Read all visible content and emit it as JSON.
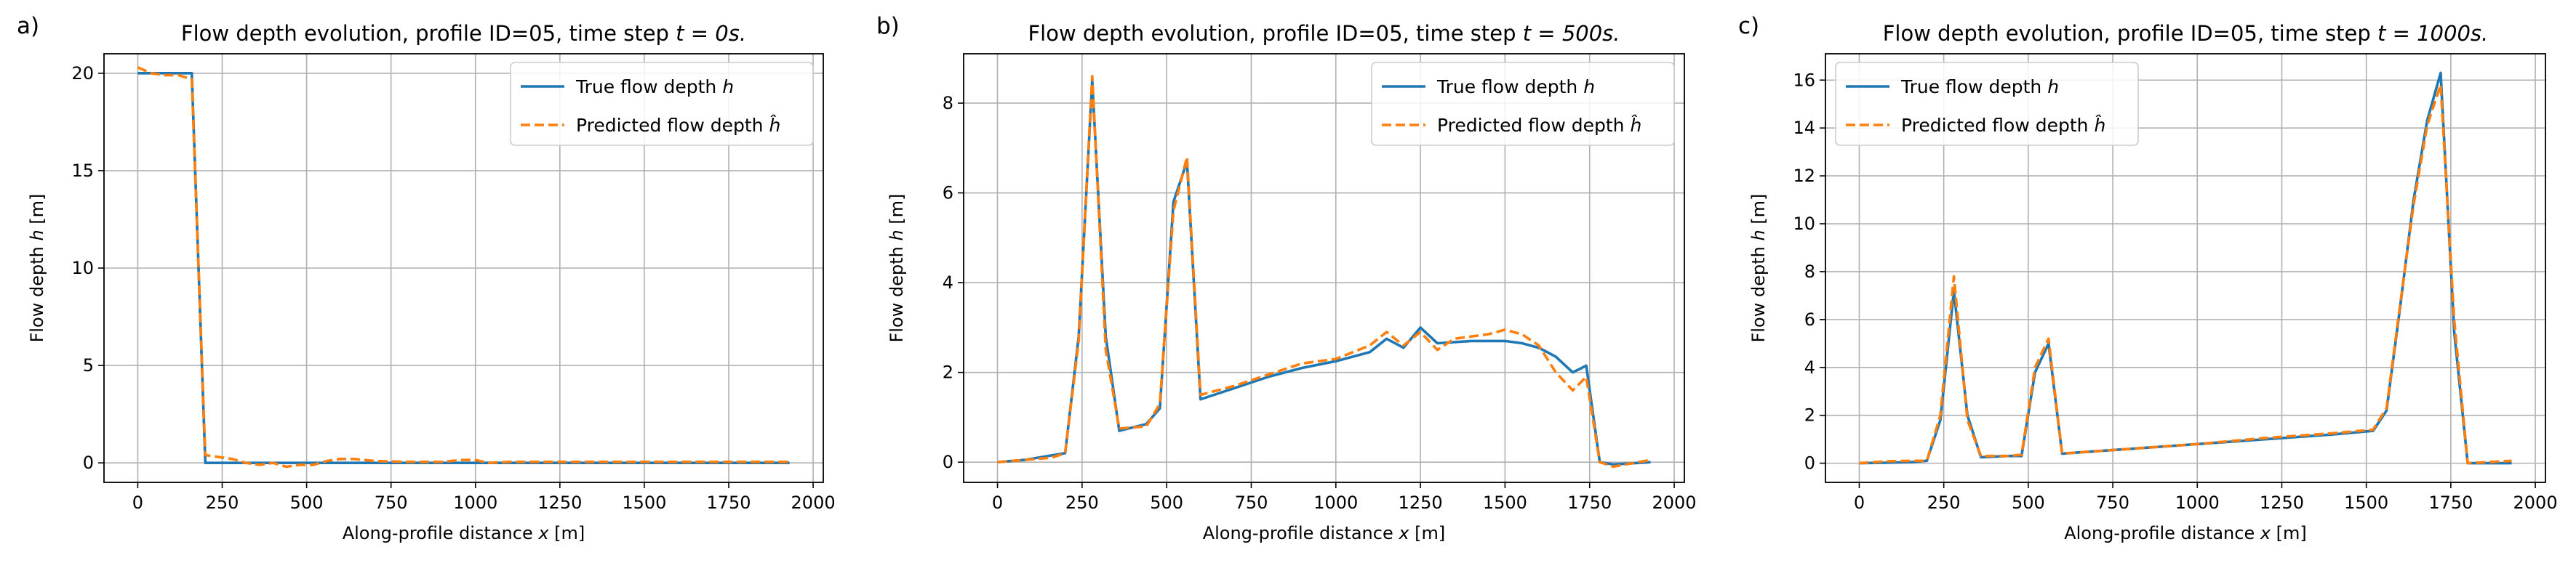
{
  "figure": {
    "panels": [
      {
        "label": "a)",
        "title": "Flow depth evolution, profile ID=05, time step ",
        "title_math": "t = 0s."
      },
      {
        "label": "b)",
        "title": "Flow depth evolution, profile ID=05, time step ",
        "title_math": "t = 500s."
      },
      {
        "label": "c)",
        "title": "Flow depth evolution, profile ID=05, time step ",
        "title_math": "t = 1000s."
      }
    ],
    "xlabel_text": "Along-profile distance ",
    "xlabel_math": "x",
    "xlabel_unit": " [m]",
    "ylabel_text": "Flow depth ",
    "ylabel_math": "h",
    "ylabel_unit": " [m]",
    "legend": {
      "true_text": "True flow depth ",
      "true_math": "h",
      "pred_text": "Predicted flow depth ",
      "pred_math": "ĥ"
    }
  },
  "chart_data": [
    {
      "type": "line",
      "title": "Flow depth evolution, profile ID=05, time step t = 0s.",
      "xlabel": "Along-profile distance x [m]",
      "ylabel": "Flow depth h [m]",
      "xlim": [
        -100,
        2030
      ],
      "ylim": [
        -1.0,
        21.0
      ],
      "xticks": [
        0,
        250,
        500,
        750,
        1000,
        1250,
        1500,
        1750,
        2000
      ],
      "yticks": [
        0,
        5,
        10,
        15,
        20
      ],
      "grid": true,
      "legend_position": "top-right",
      "series": [
        {
          "name": "True flow depth h",
          "color": "#1f77b4",
          "style": "solid",
          "x": [
            0,
            80,
            160,
            200,
            400,
            600,
            800,
            1000,
            1200,
            1400,
            1600,
            1800,
            1930
          ],
          "y": [
            20.0,
            20.0,
            20.0,
            0.0,
            0.0,
            0.0,
            0.0,
            0.0,
            0.0,
            0.0,
            0.0,
            0.0,
            0.0
          ]
        },
        {
          "name": "Predicted flow depth ĥ",
          "color": "#ff7f0e",
          "style": "dashed",
          "x": [
            0,
            40,
            80,
            120,
            160,
            200,
            240,
            280,
            320,
            360,
            400,
            440,
            480,
            520,
            560,
            600,
            640,
            700,
            800,
            900,
            960,
            1000,
            1040,
            1100,
            1200,
            1300,
            1400,
            1500,
            1600,
            1700,
            1800,
            1930
          ],
          "y": [
            20.3,
            20.0,
            19.9,
            19.9,
            19.7,
            0.4,
            0.3,
            0.2,
            0.0,
            -0.1,
            0.0,
            -0.2,
            -0.1,
            -0.1,
            0.1,
            0.2,
            0.2,
            0.1,
            0.05,
            0.05,
            0.15,
            0.15,
            0.0,
            0.05,
            0.05,
            0.05,
            0.05,
            0.05,
            0.05,
            0.05,
            0.05,
            0.05
          ]
        }
      ]
    },
    {
      "type": "line",
      "title": "Flow depth evolution, profile ID=05, time step t = 500s.",
      "xlabel": "Along-profile distance x [m]",
      "ylabel": "Flow depth h [m]",
      "xlim": [
        -100,
        2030
      ],
      "ylim": [
        -0.45,
        9.1
      ],
      "xticks": [
        0,
        250,
        500,
        750,
        1000,
        1250,
        1500,
        1750,
        2000
      ],
      "yticks": [
        0,
        2,
        4,
        6,
        8
      ],
      "grid": true,
      "legend_position": "top-right",
      "series": [
        {
          "name": "True flow depth h",
          "color": "#1f77b4",
          "style": "solid",
          "x": [
            0,
            80,
            160,
            200,
            240,
            280,
            320,
            360,
            440,
            480,
            520,
            560,
            600,
            700,
            800,
            900,
            1000,
            1100,
            1150,
            1200,
            1250,
            1300,
            1400,
            1500,
            1550,
            1600,
            1650,
            1700,
            1740,
            1780,
            1820,
            1930
          ],
          "y": [
            0.0,
            0.05,
            0.15,
            0.2,
            2.8,
            8.5,
            2.8,
            0.7,
            0.85,
            1.2,
            5.8,
            6.7,
            1.4,
            1.65,
            1.9,
            2.1,
            2.25,
            2.45,
            2.75,
            2.55,
            3.0,
            2.65,
            2.7,
            2.7,
            2.65,
            2.55,
            2.35,
            2.0,
            2.15,
            0.0,
            -0.05,
            0.0
          ]
        },
        {
          "name": "Predicted flow depth ĥ",
          "color": "#ff7f0e",
          "style": "dashed",
          "x": [
            0,
            80,
            160,
            200,
            240,
            280,
            320,
            360,
            440,
            480,
            520,
            560,
            600,
            700,
            800,
            900,
            1000,
            1100,
            1150,
            1200,
            1250,
            1300,
            1350,
            1400,
            1450,
            1500,
            1550,
            1600,
            1650,
            1700,
            1740,
            1780,
            1820,
            1930
          ],
          "y": [
            0.0,
            0.05,
            0.1,
            0.2,
            2.7,
            8.6,
            2.5,
            0.75,
            0.8,
            1.3,
            5.6,
            6.8,
            1.5,
            1.7,
            1.95,
            2.2,
            2.3,
            2.6,
            2.9,
            2.6,
            2.9,
            2.5,
            2.75,
            2.8,
            2.85,
            2.95,
            2.85,
            2.6,
            2.0,
            1.6,
            1.9,
            0.0,
            -0.1,
            0.05
          ]
        }
      ]
    },
    {
      "type": "line",
      "title": "Flow depth evolution, profile ID=05, time step t = 1000s.",
      "xlabel": "Along-profile distance x [m]",
      "ylabel": "Flow depth h [m]",
      "xlim": [
        -100,
        2030
      ],
      "ylim": [
        -0.8,
        17.1
      ],
      "xticks": [
        0,
        250,
        500,
        750,
        1000,
        1250,
        1500,
        1750,
        2000
      ],
      "yticks": [
        0,
        2,
        4,
        6,
        8,
        10,
        12,
        14,
        16
      ],
      "grid": true,
      "legend_position": "top-left",
      "series": [
        {
          "name": "True flow depth h",
          "color": "#1f77b4",
          "style": "solid",
          "x": [
            0,
            80,
            160,
            200,
            240,
            280,
            320,
            360,
            440,
            480,
            520,
            560,
            600,
            800,
            1000,
            1200,
            1400,
            1520,
            1560,
            1600,
            1640,
            1680,
            1720,
            1760,
            1800,
            1930
          ],
          "y": [
            0.0,
            0.02,
            0.05,
            0.1,
            1.8,
            7.2,
            2.0,
            0.25,
            0.3,
            0.3,
            3.8,
            5.0,
            0.4,
            0.6,
            0.8,
            1.0,
            1.2,
            1.35,
            2.2,
            6.5,
            11.0,
            14.3,
            16.3,
            5.5,
            0.0,
            0.0
          ]
        },
        {
          "name": "Predicted flow depth ĥ",
          "color": "#ff7f0e",
          "style": "dashed",
          "x": [
            0,
            80,
            160,
            200,
            240,
            280,
            320,
            360,
            440,
            480,
            520,
            560,
            600,
            800,
            1000,
            1200,
            1400,
            1520,
            1560,
            1600,
            1640,
            1680,
            1720,
            1760,
            1800,
            1930
          ],
          "y": [
            0.0,
            0.08,
            0.1,
            0.1,
            2.0,
            7.8,
            1.8,
            0.3,
            0.3,
            0.35,
            4.0,
            5.2,
            0.4,
            0.6,
            0.8,
            1.05,
            1.25,
            1.4,
            2.3,
            6.6,
            10.8,
            14.1,
            15.8,
            6.0,
            0.0,
            0.1
          ]
        }
      ]
    }
  ]
}
